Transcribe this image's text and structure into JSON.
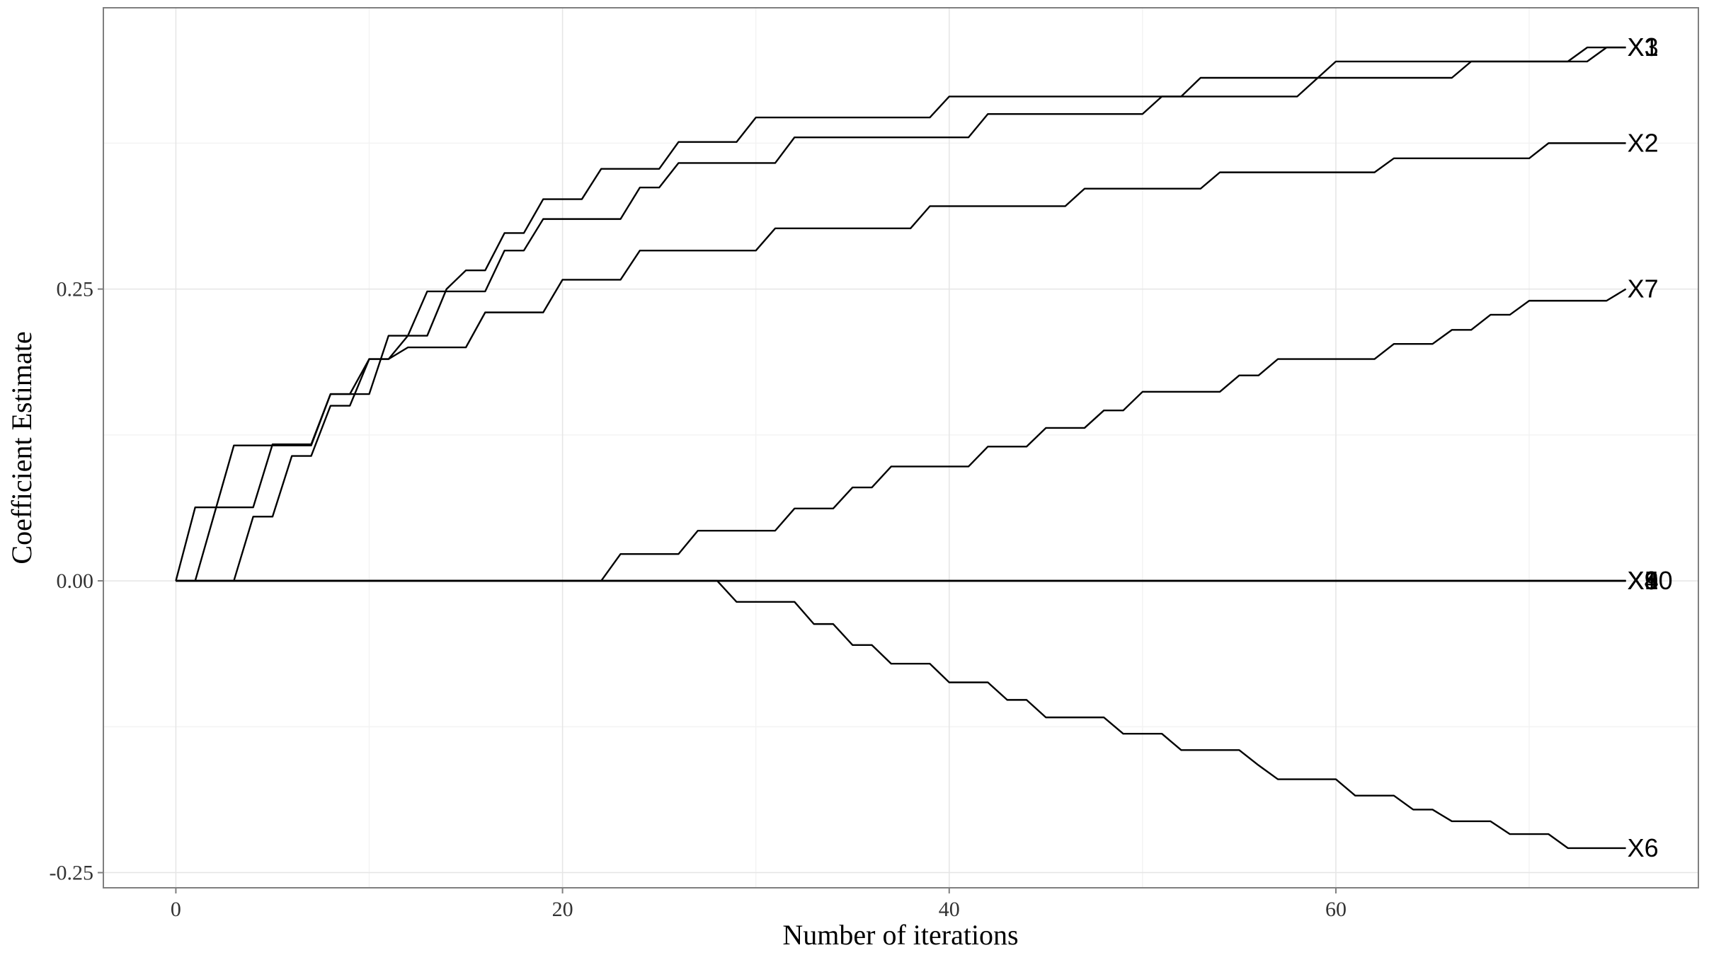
{
  "chart_data": {
    "type": "line",
    "xlabel": "Number of iterations",
    "ylabel": "Coefficient Estimate",
    "x": [
      0,
      1,
      2,
      3,
      4,
      5,
      6,
      7,
      8,
      9,
      10,
      11,
      12,
      13,
      14,
      15,
      16,
      17,
      18,
      19,
      20,
      21,
      22,
      23,
      24,
      25,
      26,
      27,
      28,
      29,
      30,
      31,
      32,
      33,
      34,
      35,
      36,
      37,
      38,
      39,
      40,
      41,
      42,
      43,
      44,
      45,
      46,
      47,
      48,
      49,
      50,
      51,
      52,
      53,
      54,
      55,
      56,
      57,
      58,
      59,
      60,
      61,
      62,
      63,
      64,
      65,
      66,
      67,
      68,
      69,
      70,
      71,
      72,
      73,
      74,
      75
    ],
    "xlim": [
      -3.75,
      78.75
    ],
    "xticks": [
      0,
      20,
      40,
      60
    ],
    "ylim": [
      -0.263,
      0.491
    ],
    "yticks": [
      {
        "value": -0.25,
        "label": "-0.25"
      },
      {
        "value": 0,
        "label": "0.00"
      },
      {
        "value": 0.25,
        "label": "0.25"
      }
    ],
    "grid": true,
    "end_labels": true,
    "series": [
      {
        "name": "X1",
        "color": "#000000",
        "values": [
          0,
          0.063,
          0.063,
          0.063,
          0.063,
          0.117,
          0.117,
          0.117,
          0.16,
          0.16,
          0.19,
          0.19,
          0.21,
          0.21,
          0.25,
          0.266,
          0.266,
          0.298,
          0.298,
          0.327,
          0.327,
          0.327,
          0.353,
          0.353,
          0.353,
          0.353,
          0.376,
          0.376,
          0.376,
          0.376,
          0.397,
          0.397,
          0.397,
          0.397,
          0.397,
          0.397,
          0.397,
          0.397,
          0.397,
          0.397,
          0.415,
          0.415,
          0.415,
          0.415,
          0.415,
          0.415,
          0.415,
          0.415,
          0.415,
          0.415,
          0.415,
          0.415,
          0.415,
          0.431,
          0.431,
          0.431,
          0.431,
          0.431,
          0.431,
          0.431,
          0.431,
          0.431,
          0.431,
          0.431,
          0.431,
          0.431,
          0.431,
          0.445,
          0.445,
          0.445,
          0.445,
          0.445,
          0.445,
          0.457,
          0.457,
          0.457
        ]
      },
      {
        "name": "X3",
        "color": "#000000",
        "values": [
          0,
          0,
          0.058,
          0.116,
          0.116,
          0.116,
          0.116,
          0.116,
          0.16,
          0.16,
          0.16,
          0.21,
          0.21,
          0.248,
          0.248,
          0.248,
          0.248,
          0.283,
          0.283,
          0.31,
          0.31,
          0.31,
          0.31,
          0.31,
          0.337,
          0.337,
          0.358,
          0.358,
          0.358,
          0.358,
          0.358,
          0.358,
          0.38,
          0.38,
          0.38,
          0.38,
          0.38,
          0.38,
          0.38,
          0.38,
          0.38,
          0.38,
          0.4,
          0.4,
          0.4,
          0.4,
          0.4,
          0.4,
          0.4,
          0.4,
          0.4,
          0.415,
          0.415,
          0.415,
          0.415,
          0.415,
          0.415,
          0.415,
          0.415,
          0.43,
          0.445,
          0.445,
          0.445,
          0.445,
          0.445,
          0.445,
          0.445,
          0.445,
          0.445,
          0.445,
          0.445,
          0.445,
          0.445,
          0.445,
          0.457,
          0.457
        ]
      },
      {
        "name": "X2",
        "color": "#000000",
        "values": [
          0,
          0,
          0,
          0,
          0.055,
          0.055,
          0.107,
          0.107,
          0.15,
          0.15,
          0.19,
          0.19,
          0.2,
          0.2,
          0.2,
          0.2,
          0.23,
          0.23,
          0.23,
          0.23,
          0.258,
          0.258,
          0.258,
          0.258,
          0.283,
          0.283,
          0.283,
          0.283,
          0.283,
          0.283,
          0.283,
          0.302,
          0.302,
          0.302,
          0.302,
          0.302,
          0.302,
          0.302,
          0.302,
          0.321,
          0.321,
          0.321,
          0.321,
          0.321,
          0.321,
          0.321,
          0.321,
          0.336,
          0.336,
          0.336,
          0.336,
          0.336,
          0.336,
          0.336,
          0.35,
          0.35,
          0.35,
          0.35,
          0.35,
          0.35,
          0.35,
          0.35,
          0.35,
          0.362,
          0.362,
          0.362,
          0.362,
          0.362,
          0.362,
          0.362,
          0.362,
          0.375,
          0.375,
          0.375,
          0.375,
          0.375
        ]
      },
      {
        "name": "X7",
        "color": "#000000",
        "values": [
          0,
          0,
          0,
          0,
          0,
          0,
          0,
          0,
          0,
          0,
          0,
          0,
          0,
          0,
          0,
          0,
          0,
          0,
          0,
          0,
          0,
          0,
          0,
          0.023,
          0.023,
          0.023,
          0.023,
          0.043,
          0.043,
          0.043,
          0.043,
          0.043,
          0.062,
          0.062,
          0.062,
          0.08,
          0.08,
          0.098,
          0.098,
          0.098,
          0.098,
          0.098,
          0.115,
          0.115,
          0.115,
          0.131,
          0.131,
          0.131,
          0.146,
          0.146,
          0.162,
          0.162,
          0.162,
          0.162,
          0.162,
          0.176,
          0.176,
          0.19,
          0.19,
          0.19,
          0.19,
          0.19,
          0.19,
          0.203,
          0.203,
          0.203,
          0.215,
          0.215,
          0.228,
          0.228,
          0.24,
          0.24,
          0.24,
          0.24,
          0.24,
          0.25
        ]
      },
      {
        "name": "X6",
        "color": "#000000",
        "values": [
          0,
          0,
          0,
          0,
          0,
          0,
          0,
          0,
          0,
          0,
          0,
          0,
          0,
          0,
          0,
          0,
          0,
          0,
          0,
          0,
          0,
          0,
          0,
          0,
          0,
          0,
          0,
          0,
          0,
          -0.018,
          -0.018,
          -0.018,
          -0.018,
          -0.037,
          -0.037,
          -0.055,
          -0.055,
          -0.071,
          -0.071,
          -0.071,
          -0.087,
          -0.087,
          -0.087,
          -0.102,
          -0.102,
          -0.117,
          -0.117,
          -0.117,
          -0.117,
          -0.131,
          -0.131,
          -0.131,
          -0.145,
          -0.145,
          -0.145,
          -0.145,
          -0.158,
          -0.17,
          -0.17,
          -0.17,
          -0.17,
          -0.184,
          -0.184,
          -0.184,
          -0.196,
          -0.196,
          -0.206,
          -0.206,
          -0.206,
          -0.217,
          -0.217,
          -0.217,
          -0.229,
          -0.229,
          -0.229,
          -0.229
        ]
      },
      {
        "name": "X4",
        "color": "#000000",
        "values": [
          0,
          0,
          0,
          0,
          0,
          0,
          0,
          0,
          0,
          0,
          0,
          0,
          0,
          0,
          0,
          0,
          0,
          0,
          0,
          0,
          0,
          0,
          0,
          0,
          0,
          0,
          0,
          0,
          0,
          0,
          0,
          0,
          0,
          0,
          0,
          0,
          0,
          0,
          0,
          0,
          0,
          0,
          0,
          0,
          0,
          0,
          0,
          0,
          0,
          0,
          0,
          0,
          0,
          0,
          0,
          0,
          0,
          0,
          0,
          0,
          0,
          0,
          0,
          0,
          0,
          0,
          0,
          0,
          0,
          0,
          0,
          0,
          0,
          0,
          0,
          0
        ]
      },
      {
        "name": "X5",
        "color": "#000000",
        "values": [
          0,
          0,
          0,
          0,
          0,
          0,
          0,
          0,
          0,
          0,
          0,
          0,
          0,
          0,
          0,
          0,
          0,
          0,
          0,
          0,
          0,
          0,
          0,
          0,
          0,
          0,
          0,
          0,
          0,
          0,
          0,
          0,
          0,
          0,
          0,
          0,
          0,
          0,
          0,
          0,
          0,
          0,
          0,
          0,
          0,
          0,
          0,
          0,
          0,
          0,
          0,
          0,
          0,
          0,
          0,
          0,
          0,
          0,
          0,
          0,
          0,
          0,
          0,
          0,
          0,
          0,
          0,
          0,
          0,
          0,
          0,
          0,
          0,
          0,
          0,
          0
        ]
      },
      {
        "name": "X8",
        "color": "#000000",
        "values": [
          0,
          0,
          0,
          0,
          0,
          0,
          0,
          0,
          0,
          0,
          0,
          0,
          0,
          0,
          0,
          0,
          0,
          0,
          0,
          0,
          0,
          0,
          0,
          0,
          0,
          0,
          0,
          0,
          0,
          0,
          0,
          0,
          0,
          0,
          0,
          0,
          0,
          0,
          0,
          0,
          0,
          0,
          0,
          0,
          0,
          0,
          0,
          0,
          0,
          0,
          0,
          0,
          0,
          0,
          0,
          0,
          0,
          0,
          0,
          0,
          0,
          0,
          0,
          0,
          0,
          0,
          0,
          0,
          0,
          0,
          0,
          0,
          0,
          0,
          0,
          0
        ]
      },
      {
        "name": "X9",
        "color": "#000000",
        "values": [
          0,
          0,
          0,
          0,
          0,
          0,
          0,
          0,
          0,
          0,
          0,
          0,
          0,
          0,
          0,
          0,
          0,
          0,
          0,
          0,
          0,
          0,
          0,
          0,
          0,
          0,
          0,
          0,
          0,
          0,
          0,
          0,
          0,
          0,
          0,
          0,
          0,
          0,
          0,
          0,
          0,
          0,
          0,
          0,
          0,
          0,
          0,
          0,
          0,
          0,
          0,
          0,
          0,
          0,
          0,
          0,
          0,
          0,
          0,
          0,
          0,
          0,
          0,
          0,
          0,
          0,
          0,
          0,
          0,
          0,
          0,
          0,
          0,
          0,
          0,
          0
        ]
      },
      {
        "name": "X10",
        "color": "#000000",
        "values": [
          0,
          0,
          0,
          0,
          0,
          0,
          0,
          0,
          0,
          0,
          0,
          0,
          0,
          0,
          0,
          0,
          0,
          0,
          0,
          0,
          0,
          0,
          0,
          0,
          0,
          0,
          0,
          0,
          0,
          0,
          0,
          0,
          0,
          0,
          0,
          0,
          0,
          0,
          0,
          0,
          0,
          0,
          0,
          0,
          0,
          0,
          0,
          0,
          0,
          0,
          0,
          0,
          0,
          0,
          0,
          0,
          0,
          0,
          0,
          0,
          0,
          0,
          0,
          0,
          0,
          0,
          0,
          0,
          0,
          0,
          0,
          0,
          0,
          0,
          0,
          0
        ]
      }
    ]
  }
}
